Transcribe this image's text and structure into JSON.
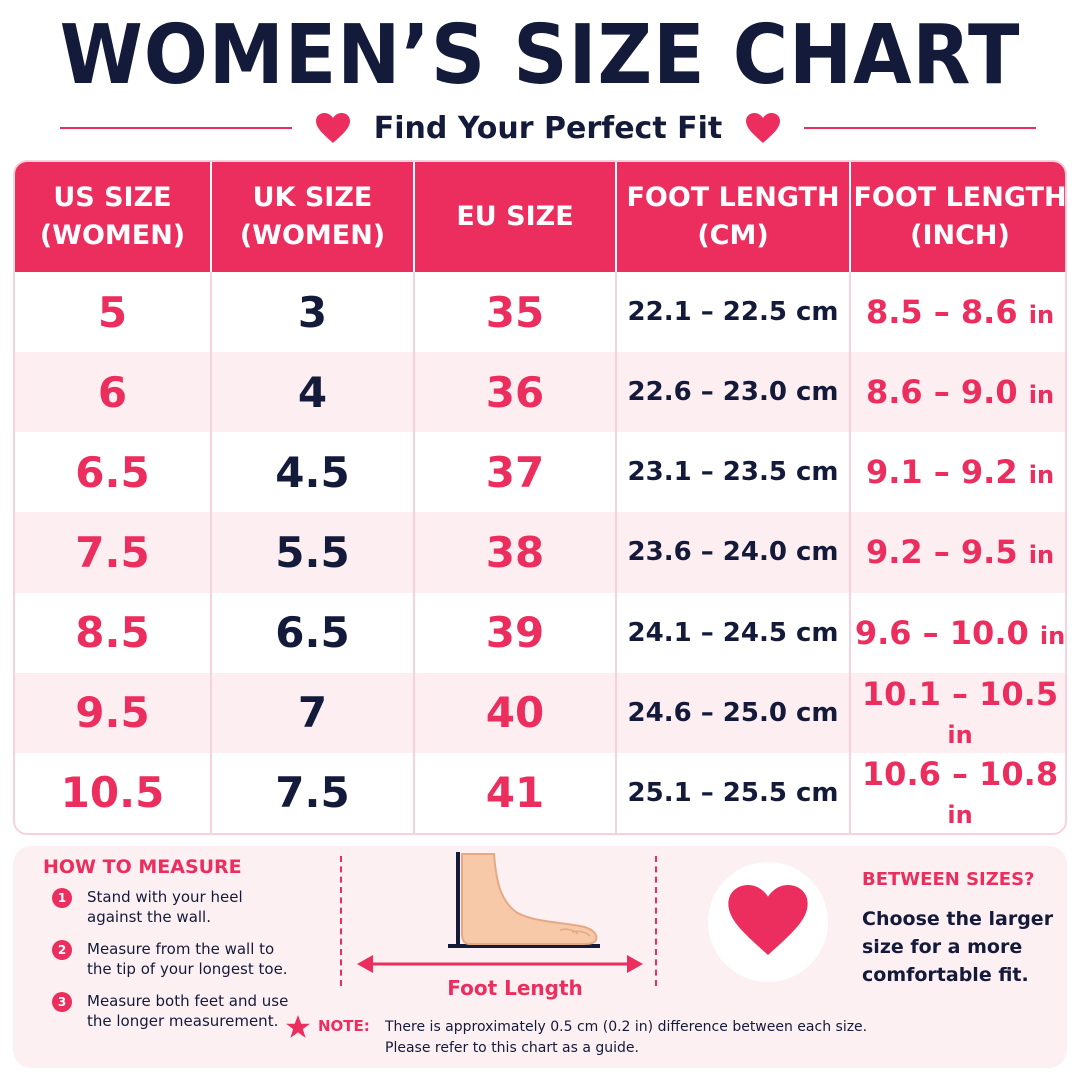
{
  "header": {
    "title": "WOMEN’S SIZE CHART",
    "subtitle": "Find Your Perfect Fit"
  },
  "table": {
    "columns": [
      "US SIZE\n(WOMEN)",
      "UK SIZE\n(WOMEN)",
      "EU SIZE",
      "FOOT LENGTH\n(CM)",
      "FOOT LENGTH\n(INCH)"
    ],
    "rows": [
      {
        "us": "5",
        "uk": "3",
        "eu": "35",
        "cm": "22.1 – 22.5 cm",
        "inch": "8.5 – 8.6",
        "inch_unit": "in"
      },
      {
        "us": "6",
        "uk": "4",
        "eu": "36",
        "cm": "22.6 – 23.0 cm",
        "inch": "8.6 – 9.0",
        "inch_unit": "in"
      },
      {
        "us": "6.5",
        "uk": "4.5",
        "eu": "37",
        "cm": "23.1 – 23.5 cm",
        "inch": "9.1 – 9.2",
        "inch_unit": "in"
      },
      {
        "us": "7.5",
        "uk": "5.5",
        "eu": "38",
        "cm": "23.6 – 24.0 cm",
        "inch": "9.2 – 9.5",
        "inch_unit": "in"
      },
      {
        "us": "8.5",
        "uk": "6.5",
        "eu": "39",
        "cm": "24.1 – 24.5 cm",
        "inch": "9.6 – 10.0",
        "inch_unit": "in"
      },
      {
        "us": "9.5",
        "uk": "7",
        "eu": "40",
        "cm": "24.6 – 25.0 cm",
        "inch": "10.1 – 10.5",
        "inch_unit": "in"
      },
      {
        "us": "10.5",
        "uk": "7.5",
        "eu": "41",
        "cm": "25.1 – 25.5 cm",
        "inch": "10.6 – 10.8",
        "inch_unit": "in"
      }
    ]
  },
  "measure": {
    "title": "HOW TO MEASURE",
    "steps": [
      {
        "num": "1",
        "text": "Stand with your heel against the wall."
      },
      {
        "num": "2",
        "text": "Measure from the wall to the tip of your longest toe."
      },
      {
        "num": "3",
        "text": "Measure both feet and use the longer measurement."
      }
    ],
    "foot_label": "Foot Length"
  },
  "between": {
    "title": "BETWEEN SIZES?",
    "text": "Choose the larger size for a more comfortable fit."
  },
  "note": {
    "label": "NOTE:",
    "line1": "There is approximately 0.5 cm (0.2 in) difference between each size.",
    "line2": "Please refer to this chart as a guide."
  },
  "colors": {
    "accent": "#ec2e5e",
    "navy": "#141a3a",
    "row_alt": "#fdeef2"
  },
  "icons": [
    "heart-icon",
    "foot-icon",
    "double-arrow-icon",
    "star-icon"
  ]
}
